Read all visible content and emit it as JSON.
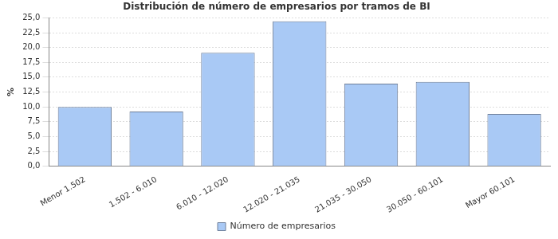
{
  "chart_data": {
    "type": "bar",
    "title": "Distribución de número de empresarios por tramos de BI",
    "ylabel": "%",
    "categories": [
      "Menor 1.502",
      "1.502 - 6.010",
      "6.010 - 12.020",
      "12.020 - 21.035",
      "21.035 - 30.050",
      "30.050 - 60.101",
      "Mayor 60.101"
    ],
    "series": [
      {
        "name": "Número de empresarios",
        "color": "#a9c9f5",
        "values": [
          10.0,
          9.2,
          19.1,
          24.4,
          13.9,
          14.2,
          8.8
        ]
      }
    ],
    "ylim": [
      0,
      25
    ],
    "yticks": [
      {
        "value": 0,
        "label": "0,0"
      },
      {
        "value": 2.5,
        "label": "2,5"
      },
      {
        "value": 5,
        "label": "5,0"
      },
      {
        "value": 7.5,
        "label": "7,5"
      },
      {
        "value": 10,
        "label": "10,0"
      },
      {
        "value": 12.5,
        "label": "12,5"
      },
      {
        "value": 15,
        "label": "15,0"
      },
      {
        "value": 17.5,
        "label": "17,5"
      },
      {
        "value": 20,
        "label": "20,0"
      },
      {
        "value": 22.5,
        "label": "22,5"
      },
      {
        "value": 25,
        "label": "25,0"
      }
    ],
    "grid": true,
    "legend": "bottom"
  }
}
